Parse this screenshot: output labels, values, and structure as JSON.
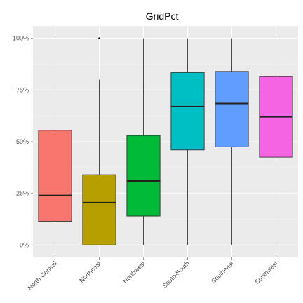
{
  "chart_data": {
    "type": "box",
    "title": "GridPct",
    "xlabel": "",
    "ylabel": "",
    "ylim": [
      -0.06,
      1.06
    ],
    "y_ticks": [
      0,
      0.25,
      0.5,
      0.75,
      1.0
    ],
    "y_tick_labels": [
      "0%",
      "25%",
      "50%",
      "75%",
      "100%"
    ],
    "grid": true,
    "legend": "none",
    "categories": [
      "North-Central",
      "Northeast",
      "Northwest",
      "South-South",
      "Southeast",
      "Southwest"
    ],
    "boxes": [
      {
        "category": "North-Central",
        "min": 0.0,
        "q1": 0.115,
        "median": 0.24,
        "q3": 0.555,
        "max": 1.0,
        "outliers": [],
        "color": "#F8766D"
      },
      {
        "category": "Northeast",
        "min": 0.0,
        "q1": 0.0,
        "median": 0.205,
        "q3": 0.34,
        "max": 0.8,
        "outliers": [
          1.0
        ],
        "color": "#B79F00"
      },
      {
        "category": "Northwest",
        "min": 0.0,
        "q1": 0.14,
        "median": 0.31,
        "q3": 0.53,
        "max": 1.0,
        "outliers": [],
        "color": "#00BA38"
      },
      {
        "category": "South-South",
        "min": 0.0,
        "q1": 0.46,
        "median": 0.67,
        "q3": 0.835,
        "max": 1.0,
        "outliers": [],
        "color": "#00BFC4"
      },
      {
        "category": "Southeast",
        "min": 0.0,
        "q1": 0.475,
        "median": 0.685,
        "q3": 0.84,
        "max": 1.0,
        "outliers": [],
        "color": "#619CFF"
      },
      {
        "category": "Southwest",
        "min": 0.0,
        "q1": 0.425,
        "median": 0.62,
        "q3": 0.815,
        "max": 1.0,
        "outliers": [],
        "color": "#F564E3"
      }
    ]
  }
}
